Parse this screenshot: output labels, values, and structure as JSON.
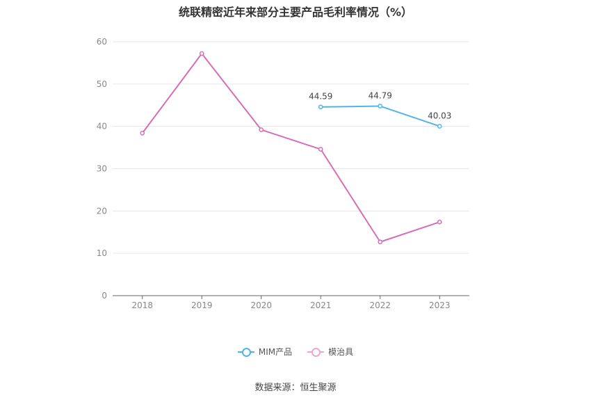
{
  "chart_data": {
    "type": "line",
    "title": "统联精密近年来部分主要产品毛利率情况（%）",
    "categories": [
      "2018",
      "2019",
      "2020",
      "2021",
      "2022",
      "2023"
    ],
    "ylim": [
      0,
      60
    ],
    "yticks": [
      0,
      10,
      20,
      30,
      40,
      50,
      60
    ],
    "grid": true,
    "legend_position": "bottom",
    "series": [
      {
        "name": "MIM产品",
        "color": "#4db6e8",
        "values": [
          null,
          null,
          null,
          44.59,
          44.79,
          40.03
        ],
        "data_labels": [
          null,
          null,
          null,
          "44.59",
          "44.79",
          "40.03"
        ]
      },
      {
        "name": "模治具",
        "color": "#d46fb4",
        "legend_color": "#e8a6d6",
        "values": [
          38.4,
          57.2,
          39.2,
          34.6,
          12.7,
          17.4
        ],
        "data_labels": [
          null,
          null,
          null,
          null,
          null,
          null
        ]
      }
    ],
    "source": "数据来源：恒生聚源"
  }
}
